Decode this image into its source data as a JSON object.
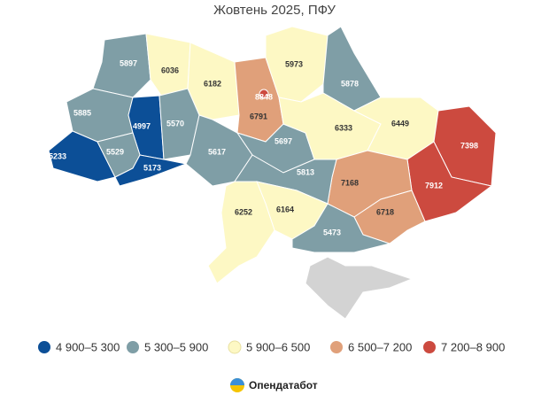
{
  "title": "Жовтень 2025, ПФУ",
  "regions": [
    {
      "value": 5897
    },
    {
      "value": 6036
    },
    {
      "value": 6182
    },
    {
      "value": 6791
    },
    {
      "value": 8848
    },
    {
      "value": 5973
    },
    {
      "value": 5878
    },
    {
      "value": 5885
    },
    {
      "value": 4997
    },
    {
      "value": 5233
    },
    {
      "value": 5529
    },
    {
      "value": 5173
    },
    {
      "value": 5570
    },
    {
      "value": 5617
    },
    {
      "value": 5697
    },
    {
      "value": 6333
    },
    {
      "value": 6449
    },
    {
      "value": 7398
    },
    {
      "value": 7912
    },
    {
      "value": 7168
    },
    {
      "value": 5813
    },
    {
      "value": 6718
    },
    {
      "value": 6164
    },
    {
      "value": 6252
    },
    {
      "value": 5473
    }
  ],
  "legend": [
    {
      "label": "4 900–5 300",
      "range": [
        4900,
        5300
      ],
      "color": "#0c4f97"
    },
    {
      "label": "5 300–5 900",
      "range": [
        5300,
        5900
      ],
      "color": "#7f9ea6"
    },
    {
      "label": "5 900–6 500",
      "range": [
        5900,
        6500
      ],
      "color": "#fdf8c4"
    },
    {
      "label": "6 500–7 200",
      "range": [
        6500,
        7200
      ],
      "color": "#e0a07a"
    },
    {
      "label": "7 200–8 900",
      "range": [
        7200,
        8900
      ],
      "color": "#cc4a3f"
    }
  ],
  "source": "Опендатабот"
}
